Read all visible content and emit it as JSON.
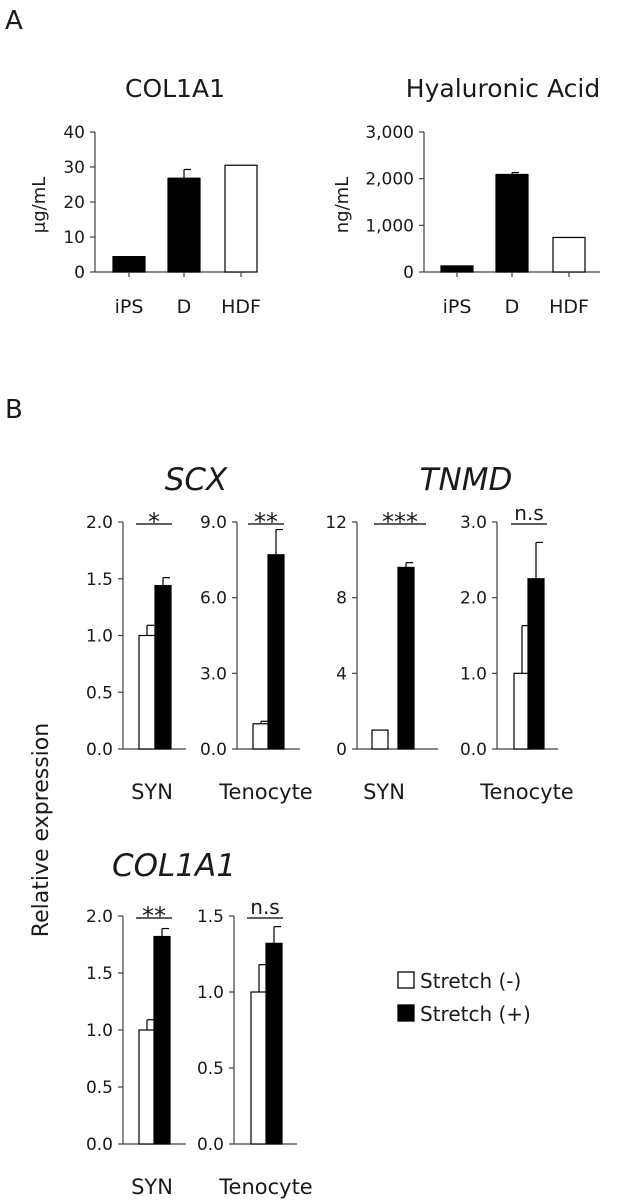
{
  "panel_labels": {
    "a": "A",
    "b": "B"
  },
  "shared_ylabel": "Relative expression",
  "section_b_titles": {
    "scx": "SCX",
    "tnmd": "TNMD",
    "col1a1": "COL1A1"
  },
  "legend": {
    "items": [
      {
        "label": "Stretch (-)",
        "fill": "#ffffff"
      },
      {
        "label": "Stretch (+)",
        "fill": "#000000"
      }
    ]
  },
  "colors": {
    "stretch_minus": "#ffffff",
    "stretch_plus": "#000000",
    "axis": "#404040"
  },
  "chart_data": [
    {
      "id": "a-col1a1",
      "type": "bar",
      "title": "COL1A1",
      "ylabel": "μg/mL",
      "ylim": [
        0,
        40
      ],
      "yticks": [
        "0",
        "10",
        "20",
        "30",
        "40"
      ],
      "ytick_values": [
        0,
        10,
        20,
        30,
        40
      ],
      "categories": [
        "iPS",
        "D",
        "HDF"
      ],
      "values": [
        4.4,
        26.8,
        30.5
      ],
      "errors": [
        0,
        2.5,
        0
      ],
      "fills": [
        "#000000",
        "#000000",
        "#ffffff"
      ],
      "grid": false
    },
    {
      "id": "a-ha",
      "type": "bar",
      "title": "Hyaluronic Acid",
      "ylabel": "ng/mL",
      "ylim": [
        0,
        3000
      ],
      "yticks": [
        "0",
        "1,000",
        "2,000",
        "3,000"
      ],
      "ytick_values": [
        0,
        1000,
        2000,
        3000
      ],
      "categories": [
        "iPS",
        "D",
        "HDF"
      ],
      "values": [
        130,
        2090,
        740
      ],
      "errors": [
        0,
        40,
        0
      ],
      "fills": [
        "#000000",
        "#000000",
        "#ffffff"
      ],
      "grid": false
    },
    {
      "id": "scx-syn",
      "type": "bar",
      "group": "SCX",
      "xlabel": "SYN",
      "ylim": [
        0,
        2.0
      ],
      "yticks": [
        "0.0",
        "0.5",
        "1.0",
        "1.5",
        "2.0"
      ],
      "ytick_values": [
        0,
        0.5,
        1.0,
        1.5,
        2.0
      ],
      "series": [
        {
          "name": "Stretch (-)",
          "values": [
            1.0
          ],
          "errors": [
            0.09
          ]
        },
        {
          "name": "Stretch (+)",
          "values": [
            1.44
          ],
          "errors": [
            0.07
          ]
        }
      ],
      "significance": "*"
    },
    {
      "id": "scx-teno",
      "type": "bar",
      "group": "SCX",
      "xlabel": "Tenocyte",
      "ylim": [
        0,
        9.0
      ],
      "yticks": [
        "0.0",
        "3.0",
        "6.0",
        "9.0"
      ],
      "ytick_values": [
        0,
        3.0,
        6.0,
        9.0
      ],
      "series": [
        {
          "name": "Stretch (-)",
          "values": [
            1.0
          ],
          "errors": [
            0.1
          ]
        },
        {
          "name": "Stretch (+)",
          "values": [
            7.7
          ],
          "errors": [
            1.0
          ]
        }
      ],
      "significance": "**"
    },
    {
      "id": "tnmd-syn",
      "type": "bar",
      "group": "TNMD",
      "xlabel": "SYN",
      "ylim": [
        0,
        12
      ],
      "yticks": [
        "0",
        "4",
        "8",
        "12"
      ],
      "ytick_values": [
        0,
        4,
        8,
        12
      ],
      "series": [
        {
          "name": "Stretch (-)",
          "values": [
            1.0
          ],
          "errors": [
            0.0
          ]
        },
        {
          "name": "Stretch (+)",
          "values": [
            9.6
          ],
          "errors": [
            0.25
          ]
        }
      ],
      "significance": "***"
    },
    {
      "id": "tnmd-teno",
      "type": "bar",
      "group": "TNMD",
      "xlabel": "Tenocyte",
      "ylim": [
        0,
        3.0
      ],
      "yticks": [
        "0.0",
        "1.0",
        "2.0",
        "3.0"
      ],
      "ytick_values": [
        0,
        1.0,
        2.0,
        3.0
      ],
      "series": [
        {
          "name": "Stretch (-)",
          "values": [
            1.0
          ],
          "errors": [
            0.63
          ]
        },
        {
          "name": "Stretch (+)",
          "values": [
            2.25
          ],
          "errors": [
            0.48
          ]
        }
      ],
      "significance": "n.s"
    },
    {
      "id": "col-syn",
      "type": "bar",
      "group": "COL1A1",
      "xlabel": "SYN",
      "ylim": [
        0,
        2.0
      ],
      "yticks": [
        "0.0",
        "0.5",
        "1.0",
        "1.5",
        "2.0"
      ],
      "ytick_values": [
        0,
        0.5,
        1.0,
        1.5,
        2.0
      ],
      "series": [
        {
          "name": "Stretch (-)",
          "values": [
            1.0
          ],
          "errors": [
            0.09
          ]
        },
        {
          "name": "Stretch (+)",
          "values": [
            1.82
          ],
          "errors": [
            0.07
          ]
        }
      ],
      "significance": "**"
    },
    {
      "id": "col-teno",
      "type": "bar",
      "group": "COL1A1",
      "xlabel": "Tenocyte",
      "ylim": [
        0,
        1.5
      ],
      "yticks": [
        "0.0",
        "0.5",
        "1.0",
        "1.5"
      ],
      "ytick_values": [
        0,
        0.5,
        1.0,
        1.5
      ],
      "series": [
        {
          "name": "Stretch (-)",
          "values": [
            1.0
          ],
          "errors": [
            0.18
          ]
        },
        {
          "name": "Stretch (+)",
          "values": [
            1.32
          ],
          "errors": [
            0.11
          ]
        }
      ],
      "significance": "n.s"
    }
  ]
}
